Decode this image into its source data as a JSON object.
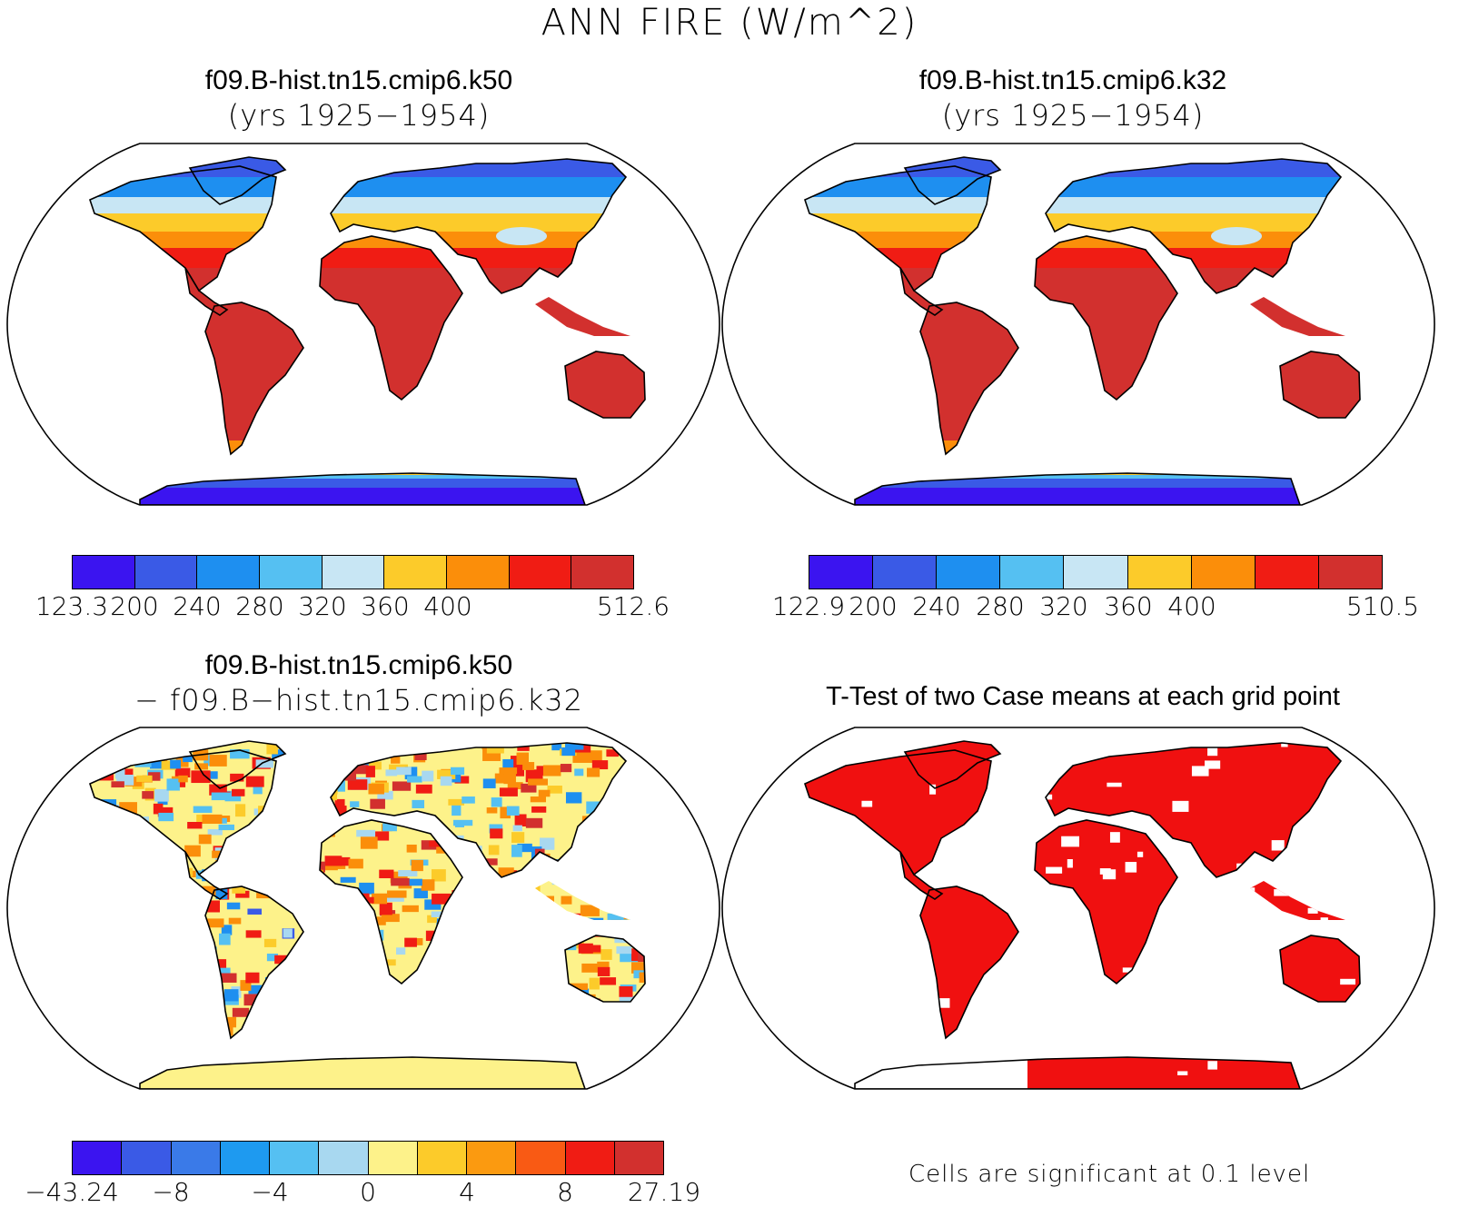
{
  "title": "ANN FIRE (W/m^2)",
  "panels": {
    "top_left": {
      "title_line1": "f09.B-hist.tn15.cmip6.k50",
      "title_line2": "(yrs 1925−1954)",
      "colorbar": {
        "colors": [
          "#3b14f0",
          "#3a5ae6",
          "#1e8ff0",
          "#55c0f2",
          "#c8e6f4",
          "#fccb2a",
          "#fb8e0a",
          "#f01c14",
          "#d2302e"
        ],
        "ticks": [
          "123.3",
          "200",
          "240",
          "280",
          "320",
          "360",
          "400",
          "512.6"
        ]
      }
    },
    "top_right": {
      "title_line1": "f09.B-hist.tn15.cmip6.k32",
      "title_line2": "(yrs 1925−1954)",
      "colorbar": {
        "colors": [
          "#3b14f0",
          "#3a5ae6",
          "#1e8ff0",
          "#55c0f2",
          "#c8e6f4",
          "#fccb2a",
          "#fb8e0a",
          "#f01c14",
          "#d2302e"
        ],
        "ticks": [
          "122.9",
          "200",
          "240",
          "280",
          "320",
          "360",
          "400",
          "510.5"
        ]
      }
    },
    "bottom_left": {
      "title_line1": "f09.B-hist.tn15.cmip6.k50",
      "title_line2": "− f09.B−hist.tn15.cmip6.k32",
      "colorbar": {
        "colors": [
          "#3b14f0",
          "#3a5ae6",
          "#3a7ae8",
          "#1e9af0",
          "#55c0f2",
          "#a8d8f0",
          "#fdf28a",
          "#fccb2a",
          "#fb9a10",
          "#f95a14",
          "#f01c14",
          "#d2302e"
        ],
        "ticks": [
          "−43.24",
          "−8",
          "−4",
          "0",
          "4",
          "8",
          "27.19"
        ]
      }
    },
    "bottom_right": {
      "title": "T-Test of two Case means at each grid point",
      "note": "Cells are significant at 0.1 level",
      "sig_color": "#f01010"
    }
  }
}
